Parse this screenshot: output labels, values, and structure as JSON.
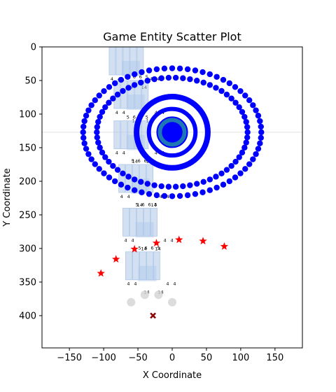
{
  "chart_data": {
    "type": "scatter",
    "title": "Game Entity Scatter Plot",
    "xlabel": "X Coordinate",
    "ylabel": "Y Coordinate",
    "xlim": [
      -190,
      190
    ],
    "ylim": [
      448,
      0
    ],
    "y_inverted": true,
    "grid": false,
    "xticks": [
      -150,
      -100,
      -50,
      0,
      50,
      100,
      150
    ],
    "yticks": [
      0,
      50,
      100,
      150,
      200,
      250,
      300,
      350,
      400
    ],
    "reference_line_y": 127,
    "colors": {
      "ring_points": "#0000ff",
      "center_disc": "#1f77b4",
      "stars": "#ff0000",
      "tiles": "#aec7e8",
      "grey_circles": "#d3d3d3",
      "cross": "#8b0000"
    },
    "rings": [
      {
        "name": "outer",
        "cx": 0,
        "cy": 127,
        "rx": 130,
        "ry": 68,
        "points": 72
      },
      {
        "name": "second",
        "cx": 0,
        "cy": 127,
        "rx": 110,
        "ry": 58,
        "points": 66
      }
    ],
    "center_rings": [
      {
        "cx": 0,
        "cy": 127,
        "r": 52,
        "stroke": "#0000ff",
        "fill": "none"
      },
      {
        "cx": 0,
        "cy": 127,
        "r": 34,
        "stroke": "#0000ff",
        "fill": "none"
      },
      {
        "cx": 0,
        "cy": 127,
        "r": 22,
        "stroke": "#0000ff",
        "fill": "#1f77b4"
      },
      {
        "cx": 0,
        "cy": 127,
        "r": 14,
        "stroke": "#0000ff",
        "fill": "#0000ff"
      }
    ],
    "stars": [
      {
        "x": -104,
        "y": 337
      },
      {
        "x": -82,
        "y": 316
      },
      {
        "x": -55,
        "y": 301
      },
      {
        "x": -23,
        "y": 292
      },
      {
        "x": 10,
        "y": 287
      },
      {
        "x": 45,
        "y": 289
      },
      {
        "x": 76,
        "y": 297
      }
    ],
    "grey_circles": [
      {
        "x": -60,
        "y": 380
      },
      {
        "x": -40,
        "y": 369
      },
      {
        "x": -20,
        "y": 369
      },
      {
        "x": 0,
        "y": 380
      }
    ],
    "cross": {
      "x": -28,
      "y": 400
    },
    "tile_groups": [
      {
        "x": -92,
        "y": 0,
        "top_labels": [
          "5",
          "6",
          "6",
          "5"
        ],
        "side_labels": [
          "4",
          "4"
        ],
        "bottom_labels": [
          "14",
          "14"
        ]
      },
      {
        "x": -85,
        "y": 50,
        "top_labels": [
          "5",
          "6",
          "6",
          "5"
        ],
        "side_labels": [
          "4",
          "4"
        ],
        "bottom_labels": [
          "14",
          "14"
        ]
      },
      {
        "x": -85,
        "y": 110,
        "top_labels": [
          "5",
          "6",
          "6",
          "5"
        ],
        "side_labels": [
          "4",
          "4"
        ],
        "bottom_labels": [
          "14",
          "14"
        ]
      },
      {
        "x": -78,
        "y": 175,
        "top_labels": [
          "5",
          "6",
          "6",
          "5"
        ],
        "side_labels": [
          "4",
          "4"
        ],
        "bottom_labels": [
          "14",
          "14"
        ]
      },
      {
        "x": -72,
        "y": 240,
        "top_labels": [
          "5",
          "6",
          "6",
          "5"
        ],
        "side_labels": [
          "4",
          "4"
        ],
        "bottom_labels": [
          "14",
          "14"
        ]
      },
      {
        "x": -68,
        "y": 305,
        "top_labels": [
          "5",
          "6",
          "6",
          "5"
        ],
        "side_labels": [
          "4",
          "4"
        ],
        "bottom_labels": [
          "14",
          "14"
        ]
      }
    ]
  }
}
